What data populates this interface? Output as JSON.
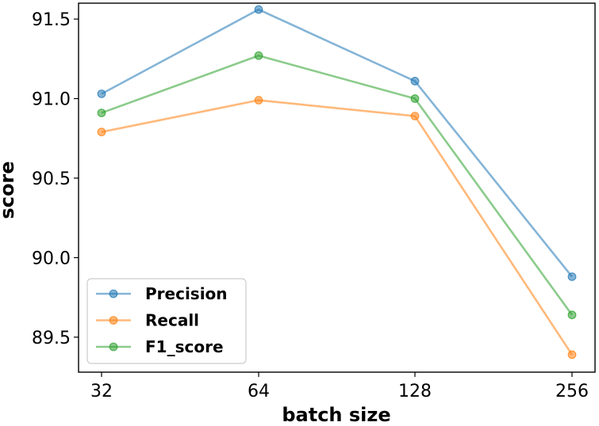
{
  "chart_data": {
    "type": "line",
    "title": "",
    "xlabel": "batch size",
    "ylabel": "score",
    "categories": [
      "32",
      "64",
      "128",
      "256"
    ],
    "ylim": [
      89.28,
      91.6
    ],
    "yticks": [
      "89.5",
      "90.0",
      "90.5",
      "91.0",
      "91.5"
    ],
    "grid": false,
    "legend_position": "lower-left",
    "series": [
      {
        "name": "Precision",
        "color": "#1f77b4",
        "values": [
          91.03,
          91.56,
          91.11,
          89.88
        ]
      },
      {
        "name": "Recall",
        "color": "#ff7f0e",
        "values": [
          90.79,
          90.99,
          90.89,
          89.39
        ]
      },
      {
        "name": "F1_score",
        "color": "#2ca02c",
        "values": [
          90.91,
          91.27,
          91.0,
          89.64
        ]
      }
    ]
  }
}
